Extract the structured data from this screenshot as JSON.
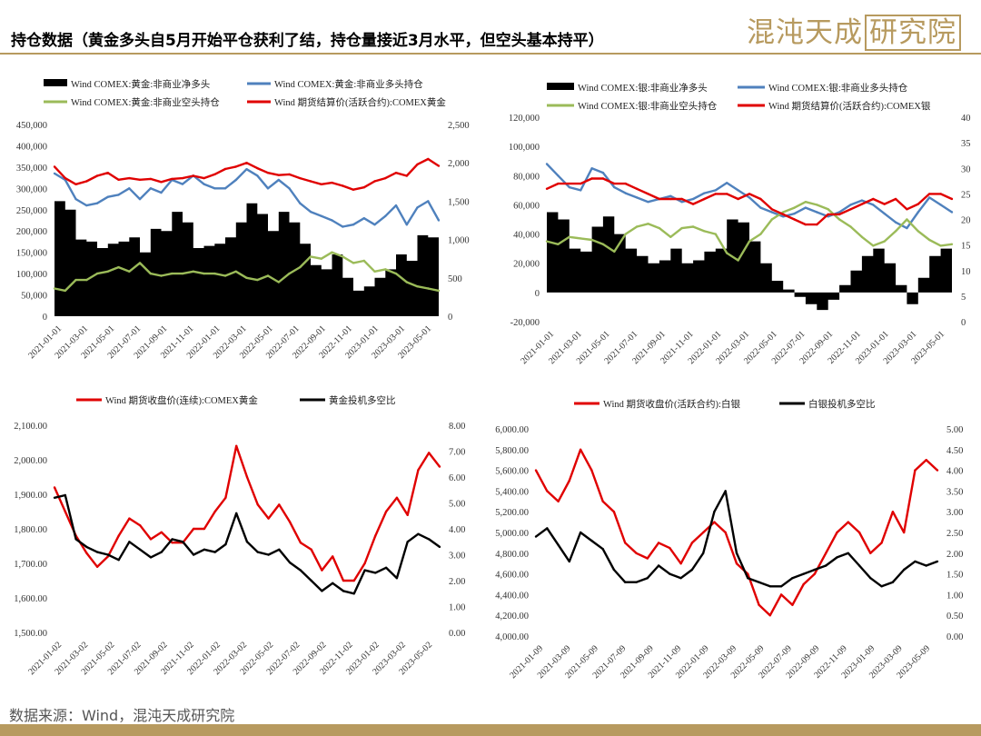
{
  "header": {
    "title": "持仓数据（黄金多头自5月开始平仓获利了结，持仓量接近3月水平，但空头基本持平）",
    "logo_text": "混沌天成",
    "logo_box_text": "研究院"
  },
  "footer": {
    "source": "数据来源：Wind，混沌天成研究院"
  },
  "colors": {
    "brand": "#b79a5f",
    "black": "#000000",
    "blue": "#4f81bd",
    "green": "#9bbb59",
    "red": "#e00000"
  },
  "chart_data": [
    {
      "type": "area",
      "legend": [
        "Wind COMEX:黄金:非商业净多头",
        "Wind COMEX:黄金:非商业多头持仓",
        "Wind COMEX:黄金:非商业空头持仓",
        "Wind 期货结算价(活跃合约):COMEX黄金"
      ],
      "y_left": {
        "min": 0,
        "max": 450000,
        "ticks": [
          "0",
          "50,000",
          "100,000",
          "150,000",
          "200,000",
          "250,000",
          "300,000",
          "350,000",
          "400,000",
          "450,000"
        ]
      },
      "y_right": {
        "min": 0,
        "max": 2500,
        "ticks": [
          "0",
          "500",
          "1,000",
          "1,500",
          "2,000",
          "2,500"
        ]
      },
      "x_ticks": [
        "2021-01-01",
        "2021-03-01",
        "2021-05-01",
        "2021-07-01",
        "2021-09-01",
        "2021-11-01",
        "2022-01-01",
        "2022-03-01",
        "2022-05-01",
        "2022-07-01",
        "2022-09-01",
        "2022-11-01",
        "2023-01-01",
        "2023-03-01",
        "2023-05-01"
      ],
      "series": [
        {
          "name": "Wind COMEX:黄金:非商业净多头",
          "axis": "left",
          "kind": "area",
          "color": "#000000",
          "values": [
            270000,
            250000,
            180000,
            175000,
            160000,
            170000,
            175000,
            185000,
            150000,
            205000,
            200000,
            245000,
            220000,
            160000,
            165000,
            170000,
            185000,
            220000,
            265000,
            240000,
            200000,
            245000,
            220000,
            170000,
            120000,
            110000,
            145000,
            90000,
            60000,
            70000,
            90000,
            110000,
            145000,
            130000,
            190000,
            185000,
            165000
          ]
        },
        {
          "name": "Wind COMEX:黄金:非商业多头持仓",
          "axis": "left",
          "kind": "line",
          "color": "#4f81bd",
          "values": [
            335000,
            320000,
            275000,
            260000,
            265000,
            280000,
            285000,
            300000,
            275000,
            300000,
            290000,
            320000,
            310000,
            330000,
            310000,
            300000,
            300000,
            320000,
            345000,
            330000,
            300000,
            320000,
            300000,
            265000,
            245000,
            235000,
            225000,
            210000,
            215000,
            230000,
            215000,
            235000,
            260000,
            215000,
            255000,
            270000,
            225000
          ]
        },
        {
          "name": "Wind COMEX:黄金:非商业空头持仓",
          "axis": "left",
          "kind": "line",
          "color": "#9bbb59",
          "values": [
            65000,
            60000,
            85000,
            85000,
            100000,
            105000,
            115000,
            105000,
            125000,
            100000,
            95000,
            100000,
            100000,
            105000,
            100000,
            100000,
            95000,
            105000,
            90000,
            85000,
            95000,
            80000,
            100000,
            115000,
            140000,
            135000,
            150000,
            140000,
            125000,
            130000,
            105000,
            110000,
            100000,
            80000,
            70000,
            65000,
            60000
          ]
        },
        {
          "name": "Wind 期货结算价(活跃合约):COMEX黄金",
          "axis": "right",
          "kind": "line",
          "color": "#e00000",
          "values": [
            1950,
            1800,
            1720,
            1760,
            1830,
            1870,
            1780,
            1800,
            1780,
            1790,
            1750,
            1790,
            1800,
            1830,
            1800,
            1850,
            1920,
            1950,
            2000,
            1930,
            1870,
            1840,
            1850,
            1800,
            1760,
            1720,
            1740,
            1700,
            1650,
            1680,
            1760,
            1800,
            1870,
            1830,
            1980,
            2050,
            1960
          ]
        }
      ]
    },
    {
      "type": "area",
      "legend": [
        "Wind COMEX:银:非商业净多头",
        "Wind COMEX:银:非商业多头持仓",
        "Wind COMEX:银:非商业空头持仓",
        "Wind 期货结算价(活跃合约):COMEX银"
      ],
      "y_left": {
        "min": -20000,
        "max": 120000,
        "ticks": [
          "-20,000",
          "0",
          "20,000",
          "40,000",
          "60,000",
          "80,000",
          "100,000",
          "120,000"
        ]
      },
      "y_right": {
        "min": 0,
        "max": 40,
        "ticks": [
          "0",
          "5",
          "10",
          "15",
          "20",
          "25",
          "30",
          "35",
          "40"
        ]
      },
      "x_ticks": [
        "2021-01-01",
        "2021-03-01",
        "2021-05-01",
        "2021-07-01",
        "2021-09-01",
        "2021-11-01",
        "2022-01-01",
        "2022-03-01",
        "2022-05-01",
        "2022-07-01",
        "2022-09-01",
        "2022-11-01",
        "2023-01-01",
        "2023-03-01",
        "2023-05-01"
      ],
      "series": [
        {
          "name": "Wind COMEX:银:非商业净多头",
          "axis": "left",
          "kind": "area",
          "color": "#000000",
          "values": [
            55000,
            50000,
            30000,
            28000,
            45000,
            52000,
            40000,
            30000,
            25000,
            20000,
            22000,
            30000,
            20000,
            22000,
            28000,
            30000,
            50000,
            48000,
            35000,
            20000,
            8000,
            2000,
            -3000,
            -8000,
            -12000,
            -5000,
            5000,
            15000,
            25000,
            30000,
            20000,
            5000,
            -8000,
            10000,
            25000,
            30000,
            22000
          ]
        },
        {
          "name": "Wind COMEX:银:非商业多头持仓",
          "axis": "left",
          "kind": "line",
          "color": "#4f81bd",
          "values": [
            88000,
            80000,
            72000,
            70000,
            85000,
            82000,
            72000,
            68000,
            65000,
            62000,
            64000,
            66000,
            62000,
            64000,
            68000,
            70000,
            75000,
            70000,
            65000,
            58000,
            55000,
            52000,
            54000,
            58000,
            55000,
            52000,
            55000,
            60000,
            63000,
            60000,
            54000,
            48000,
            44000,
            55000,
            65000,
            60000,
            55000
          ]
        },
        {
          "name": "Wind COMEX:银:非商业空头持仓",
          "axis": "left",
          "kind": "line",
          "color": "#9bbb59",
          "values": [
            35000,
            33000,
            38000,
            37000,
            36000,
            33000,
            28000,
            40000,
            45000,
            47000,
            44000,
            38000,
            44000,
            45000,
            42000,
            40000,
            27000,
            22000,
            35000,
            40000,
            50000,
            55000,
            58000,
            62000,
            60000,
            57000,
            50000,
            45000,
            38000,
            32000,
            35000,
            42000,
            50000,
            42000,
            36000,
            32000,
            33000
          ]
        },
        {
          "name": "Wind 期货结算价(活跃合约):COMEX银",
          "axis": "right",
          "kind": "line",
          "color": "#e00000",
          "values": [
            26,
            27,
            27,
            27,
            28,
            28,
            27,
            27,
            26,
            25,
            24,
            24,
            24,
            23,
            24,
            25,
            25,
            24,
            25,
            24,
            22,
            21,
            20,
            19,
            19,
            21,
            21,
            22,
            23,
            24,
            23,
            24,
            22,
            23,
            25,
            25,
            24
          ]
        }
      ]
    },
    {
      "type": "line",
      "legend": [
        "Wind 期货收盘价(连续):COMEX黄金",
        "黄金投机多空比"
      ],
      "y_left": {
        "min": 1500,
        "max": 2100,
        "ticks": [
          "1,500.00",
          "1,600.00",
          "1,700.00",
          "1,800.00",
          "1,900.00",
          "2,000.00",
          "2,100.00"
        ]
      },
      "y_right": {
        "min": 0,
        "max": 8,
        "ticks": [
          "0.00",
          "1.00",
          "2.00",
          "3.00",
          "4.00",
          "5.00",
          "6.00",
          "7.00",
          "8.00"
        ]
      },
      "x_ticks": [
        "2021-01-02",
        "2021-03-02",
        "2021-05-02",
        "2021-07-02",
        "2021-09-02",
        "2021-11-02",
        "2022-01-02",
        "2022-03-02",
        "2022-05-02",
        "2022-07-02",
        "2022-09-02",
        "2022-11-02",
        "2023-01-02",
        "2023-03-02",
        "2023-05-02"
      ],
      "series": [
        {
          "name": "Wind 期货收盘价(连续):COMEX黄金",
          "axis": "left",
          "kind": "line",
          "color": "#e00000",
          "values": [
            1920,
            1850,
            1780,
            1730,
            1690,
            1720,
            1780,
            1830,
            1810,
            1770,
            1790,
            1760,
            1760,
            1800,
            1800,
            1850,
            1890,
            2040,
            1950,
            1870,
            1830,
            1870,
            1820,
            1760,
            1740,
            1680,
            1720,
            1650,
            1650,
            1700,
            1780,
            1850,
            1890,
            1840,
            1970,
            2020,
            1980
          ]
        },
        {
          "name": "黄金投机多空比",
          "axis": "right",
          "kind": "line",
          "color": "#000000",
          "values": [
            5.2,
            5.3,
            3.6,
            3.3,
            3.1,
            3.0,
            2.8,
            3.5,
            3.2,
            2.9,
            3.1,
            3.6,
            3.5,
            3.0,
            3.2,
            3.1,
            3.4,
            4.6,
            3.5,
            3.1,
            3.0,
            3.2,
            2.7,
            2.4,
            2.0,
            1.6,
            1.9,
            1.6,
            1.5,
            2.4,
            2.3,
            2.5,
            2.1,
            3.5,
            3.8,
            3.6,
            3.3
          ]
        }
      ]
    },
    {
      "type": "line",
      "legend": [
        "Wind 期货收盘价(活跃合约):白银",
        "白银投机多空比"
      ],
      "y_left": {
        "min": 4000,
        "max": 6000,
        "ticks": [
          "4,000.00",
          "4,200.00",
          "4,400.00",
          "4,600.00",
          "4,800.00",
          "5,000.00",
          "5,200.00",
          "5,400.00",
          "5,600.00",
          "5,800.00",
          "6,000.00"
        ]
      },
      "y_right": {
        "min": 0,
        "max": 5,
        "ticks": [
          "0.00",
          "0.50",
          "1.00",
          "1.50",
          "2.00",
          "2.50",
          "3.00",
          "3.50",
          "4.00",
          "4.50",
          "5.00"
        ]
      },
      "x_ticks": [
        "2021-01-09",
        "2021-03-09",
        "2021-05-09",
        "2021-07-09",
        "2021-09-09",
        "2021-11-09",
        "2022-01-09",
        "2022-03-09",
        "2022-05-09",
        "2022-07-09",
        "2022-09-09",
        "2022-11-09",
        "2023-01-09",
        "2023-03-09",
        "2023-05-09"
      ],
      "series": [
        {
          "name": "Wind 期货收盘价(活跃合约):白银",
          "axis": "left",
          "kind": "line",
          "color": "#e00000",
          "values": [
            5600,
            5400,
            5300,
            5500,
            5800,
            5600,
            5300,
            5200,
            4900,
            4800,
            4750,
            4900,
            4850,
            4700,
            4900,
            5000,
            5100,
            5000,
            4700,
            4600,
            4300,
            4200,
            4400,
            4300,
            4500,
            4600,
            4800,
            5000,
            5100,
            5000,
            4800,
            4900,
            5200,
            5000,
            5600,
            5700,
            5600
          ]
        },
        {
          "name": "白银投机多空比",
          "axis": "right",
          "kind": "line",
          "color": "#000000",
          "values": [
            2.4,
            2.6,
            2.2,
            1.8,
            2.5,
            2.3,
            2.1,
            1.6,
            1.3,
            1.3,
            1.4,
            1.7,
            1.5,
            1.4,
            1.6,
            2.0,
            3.0,
            3.5,
            2.0,
            1.4,
            1.3,
            1.2,
            1.2,
            1.4,
            1.5,
            1.6,
            1.7,
            1.9,
            2.0,
            1.7,
            1.4,
            1.2,
            1.3,
            1.6,
            1.8,
            1.7,
            1.8
          ]
        }
      ]
    }
  ]
}
